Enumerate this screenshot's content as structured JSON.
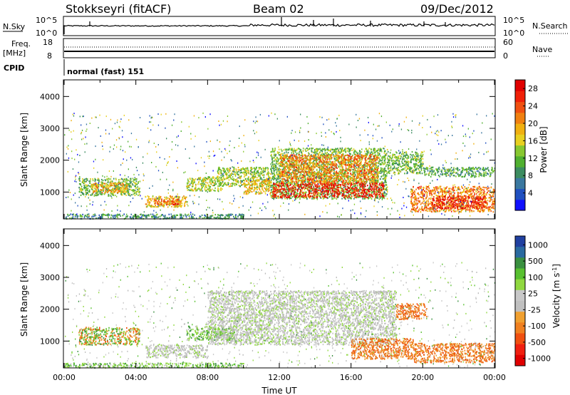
{
  "header": {
    "station": "Stokkseyri (fitACF)",
    "beam": "Beam 02",
    "date": "09/Dec/2012"
  },
  "top_panels": {
    "nsky_label": "N.Sky",
    "nsky_ticks": [
      "10^5",
      "10^0"
    ],
    "nsearch_label": "N.Search",
    "nsearch_ticks": [
      "10^5",
      "10^0"
    ],
    "freq_label": "Freq.",
    "freq_unit": "[MHz]",
    "freq_ticks": [
      "18",
      "8"
    ],
    "nave_label": "Nave",
    "nave_ticks": [
      "60",
      "0"
    ],
    "cpid_label": "CPID",
    "cpid_value": "normal (fast) 151"
  },
  "colors": {
    "power": [
      "#1010ff",
      "#2050c0",
      "#3a78a0",
      "#3c8c60",
      "#50b030",
      "#88c830",
      "#e8d020",
      "#f0b010",
      "#f08010",
      "#f05010",
      "#f02008",
      "#e00000"
    ],
    "velocity": [
      "#2040a0",
      "#2a6aa0",
      "#3a9040",
      "#58c030",
      "#90d840",
      "#c8c8c8",
      "#c0c0c0",
      "#f0a030",
      "#f08020",
      "#f05010",
      "#f02010",
      "#e00000"
    ]
  },
  "chart_data": [
    {
      "type": "heatmap",
      "name": "power",
      "ylabel": "Slant Range [km]",
      "ylim": [
        180,
        4500
      ],
      "yticks": [
        "1000",
        "2000",
        "3000",
        "4000"
      ],
      "xticks": [
        "00:00",
        "04:00",
        "08:00",
        "12:00",
        "16:00",
        "20:00",
        "00:00"
      ],
      "xlim_hours": [
        0,
        24
      ],
      "colorbar": {
        "label": "Power [dB]",
        "ticks": [
          "4",
          "8",
          "12",
          "16",
          "20",
          "24",
          "28"
        ],
        "range": [
          0,
          30
        ]
      },
      "regions": [
        {
          "h0": 0.8,
          "h1": 4.2,
          "r0": 900,
          "r1": 1450,
          "level": 12
        },
        {
          "h0": 1.5,
          "h1": 3.5,
          "r0": 1000,
          "r1": 1300,
          "level": 20
        },
        {
          "h0": 4.5,
          "h1": 6.8,
          "r0": 550,
          "r1": 900,
          "level": 18
        },
        {
          "h0": 5.0,
          "h1": 6.5,
          "r0": 620,
          "r1": 820,
          "level": 24
        },
        {
          "h0": 6.8,
          "h1": 8.8,
          "r0": 1050,
          "r1": 1500,
          "level": 14
        },
        {
          "h0": 8.5,
          "h1": 11.5,
          "r0": 1200,
          "r1": 1800,
          "level": 14
        },
        {
          "h0": 10.0,
          "h1": 11.5,
          "r0": 950,
          "r1": 1400,
          "level": 18
        },
        {
          "h0": 11.5,
          "h1": 18.0,
          "r0": 800,
          "r1": 2400,
          "level": 12
        },
        {
          "h0": 11.6,
          "h1": 17.8,
          "r0": 850,
          "r1": 1300,
          "level": 28
        },
        {
          "h0": 12.0,
          "h1": 17.5,
          "r0": 1300,
          "r1": 2200,
          "level": 22
        },
        {
          "h0": 18.0,
          "h1": 20.0,
          "r0": 1600,
          "r1": 2300,
          "level": 12
        },
        {
          "h0": 19.3,
          "h1": 24.0,
          "r0": 400,
          "r1": 1200,
          "level": 22
        },
        {
          "h0": 20.5,
          "h1": 23.5,
          "r0": 500,
          "r1": 900,
          "level": 28
        },
        {
          "h0": 20.0,
          "h1": 24.0,
          "r0": 1500,
          "r1": 1800,
          "level": 10
        },
        {
          "h0": 0.0,
          "h1": 10.0,
          "r0": 180,
          "r1": 330,
          "level": 8
        }
      ]
    },
    {
      "type": "heatmap",
      "name": "velocity",
      "ylabel": "Slant Range [km]",
      "ylim": [
        180,
        4500
      ],
      "yticks": [
        "1000",
        "2000",
        "3000",
        "4000"
      ],
      "xticks": [
        "00:00",
        "04:00",
        "08:00",
        "12:00",
        "16:00",
        "20:00",
        "00:00"
      ],
      "xlabel": "Time UT",
      "xlim_hours": [
        0,
        24
      ],
      "colorbar": {
        "label": "Velocity [m s^-1]",
        "ticks": [
          "1000",
          "500",
          "100",
          "25",
          "-25",
          "-100",
          "-500",
          "-1000"
        ]
      },
      "regions": [
        {
          "h0": 0.8,
          "h1": 4.2,
          "r0": 900,
          "r1": 1450,
          "level": "mixed_orange_green"
        },
        {
          "h0": 4.5,
          "h1": 8.0,
          "r0": 500,
          "r1": 900,
          "level": "grey"
        },
        {
          "h0": 6.8,
          "h1": 9.5,
          "r0": 1050,
          "r1": 1500,
          "level": "green"
        },
        {
          "h0": 8.0,
          "h1": 18.5,
          "r0": 900,
          "r1": 2600,
          "level": "grey"
        },
        {
          "h0": 18.5,
          "h1": 20.2,
          "r0": 1700,
          "r1": 2200,
          "level": "orange"
        },
        {
          "h0": 16.0,
          "h1": 19.5,
          "r0": 450,
          "r1": 1100,
          "level": "orange"
        },
        {
          "h0": 19.5,
          "h1": 24.0,
          "r0": 350,
          "r1": 950,
          "level": "orange"
        },
        {
          "h0": 0.0,
          "h1": 10.0,
          "r0": 180,
          "r1": 330,
          "level": "green"
        }
      ]
    }
  ]
}
